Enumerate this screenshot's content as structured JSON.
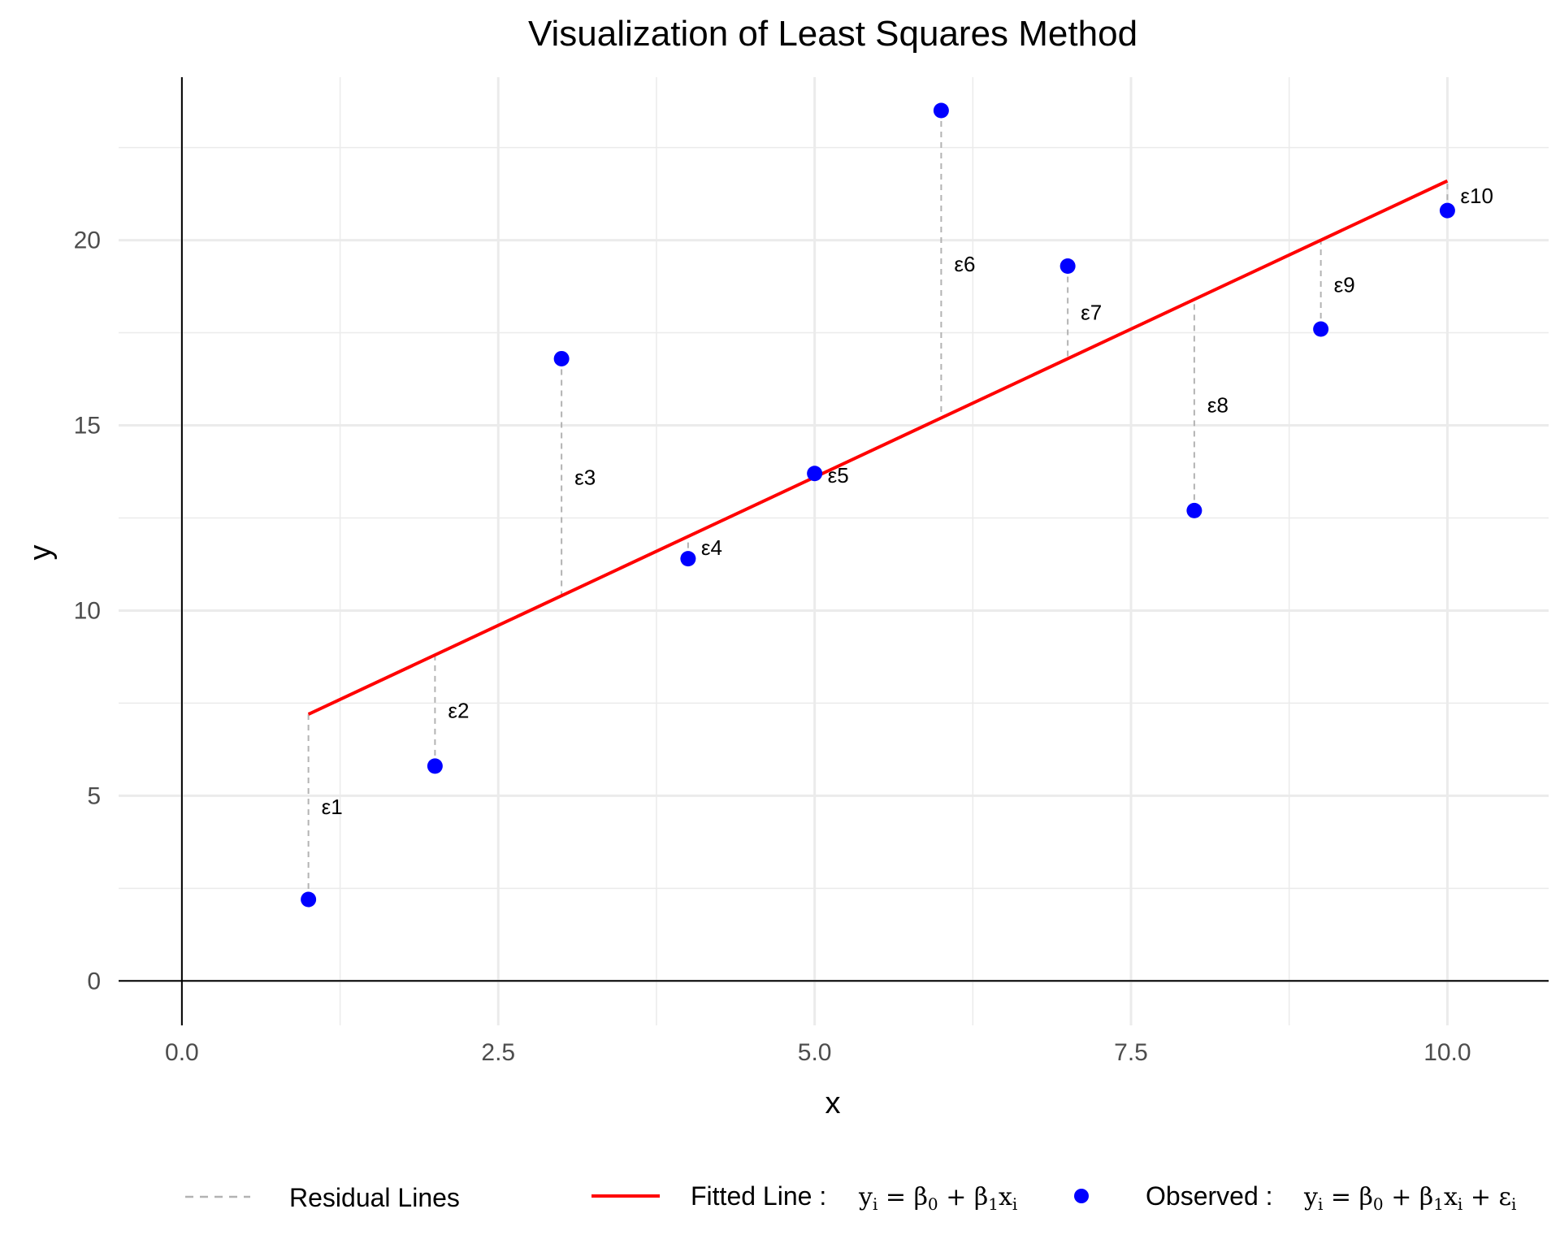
{
  "chart_data": {
    "type": "scatter",
    "title": "Visualization of Least Squares Method",
    "xlabel": "x",
    "ylabel": "y",
    "xlim": [
      -0.5,
      10.8
    ],
    "ylim": [
      -1.2,
      24.4
    ],
    "x_ticks": [
      0,
      2.5,
      5,
      7.5,
      10
    ],
    "x_tick_labels": [
      "0.0",
      "2.5",
      "5.0",
      "7.5",
      "10.0"
    ],
    "y_ticks": [
      0,
      5,
      10,
      15,
      20
    ],
    "y_tick_labels": [
      "0",
      "5",
      "10",
      "15",
      "20"
    ],
    "grid": true,
    "legend_position": "bottom",
    "colors": {
      "observed": "#0000ff",
      "fitted": "#ff0000",
      "residual": "#b3b3b3",
      "grid": "#ebebeb",
      "axis": "#000000"
    },
    "fitted_line": {
      "x": [
        1,
        10
      ],
      "y": [
        7.2,
        21.6
      ]
    },
    "observed": {
      "x": [
        1,
        2,
        3,
        4,
        5,
        6,
        7,
        8,
        9,
        10
      ],
      "y": [
        2.2,
        5.8,
        16.8,
        11.4,
        13.7,
        23.5,
        19.3,
        12.7,
        17.6,
        20.8
      ]
    },
    "residual_labels": [
      "ε1",
      "ε2",
      "ε3",
      "ε4",
      "ε5",
      "ε6",
      "ε7",
      "ε8",
      "ε9",
      "ε10"
    ],
    "legend": [
      {
        "key": "residual",
        "label": "Residual Lines"
      },
      {
        "key": "fitted",
        "label": "Fitted Line :",
        "formula": "yi = β0 + β1xi"
      },
      {
        "key": "observed",
        "label": "Observed :",
        "formula": "yi = β0 + β1xi + εi"
      }
    ]
  }
}
